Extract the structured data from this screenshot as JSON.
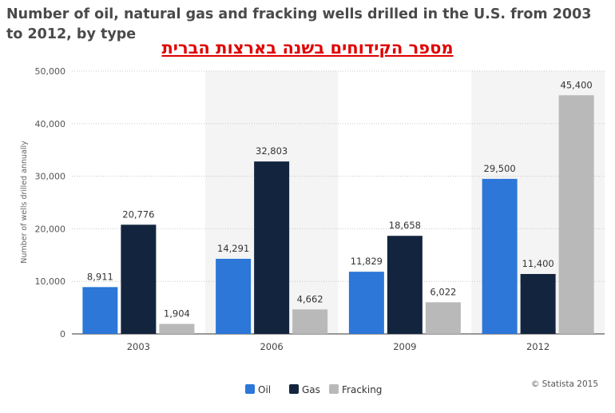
{
  "chart_data": {
    "type": "bar",
    "title": "Number of oil, natural gas and fracking wells drilled in the U.S. from 2003 to 2012, by type",
    "subtitle": "מספר הקידוחים בשנה בארצות הברית",
    "ylabel": "Number of wells drilled annually",
    "xlabel": "",
    "categories": [
      "2003",
      "2006",
      "2009",
      "2012"
    ],
    "ylim": [
      0,
      50000
    ],
    "yticks": [
      0,
      10000,
      20000,
      30000,
      40000,
      50000
    ],
    "ytick_labels": [
      "0",
      "10,000",
      "20,000",
      "30,000",
      "40,000",
      "50,000"
    ],
    "grid": true,
    "legend_position": "bottom",
    "series": [
      {
        "name": "Oil",
        "color": "#2c77d8",
        "values": [
          8911,
          14291,
          11829,
          29500
        ],
        "labels": [
          "8,911",
          "14,291",
          "11,829",
          "29,500"
        ]
      },
      {
        "name": "Gas",
        "color": "#13253e",
        "values": [
          20776,
          32803,
          18658,
          11400
        ],
        "labels": [
          "20,776",
          "32,803",
          "18,658",
          "11,400"
        ]
      },
      {
        "name": "Fracking",
        "color": "#b9b9b9",
        "values": [
          1904,
          4662,
          6022,
          45400
        ],
        "labels": [
          "1,904",
          "4,662",
          "6,022",
          "45,400"
        ]
      }
    ],
    "credit": "© Statista 2015"
  }
}
